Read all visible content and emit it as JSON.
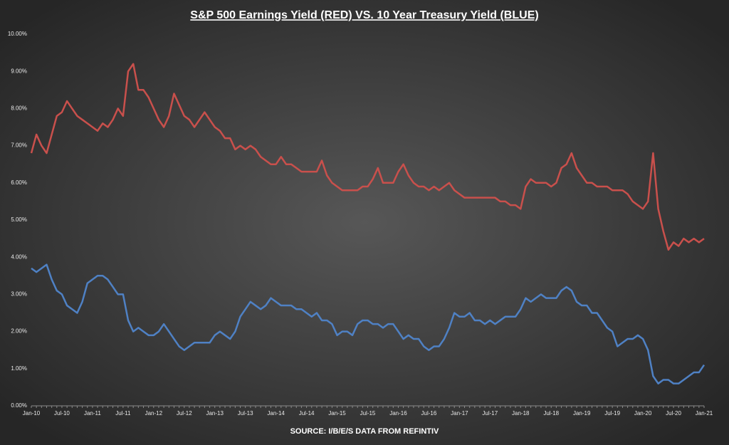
{
  "chart_data": {
    "type": "line",
    "title": "S&P 500 Earnings Yield (RED) VS. 10 Year Treasury Yield (BLUE)",
    "source": "SOURCE: I/B/E/S DATA FROM REFINTIV",
    "categories": [
      "Jan-10",
      null,
      null,
      null,
      null,
      null,
      "Jul-10",
      null,
      null,
      null,
      null,
      null,
      "Jan-11",
      null,
      null,
      null,
      null,
      null,
      "Jul-11",
      null,
      null,
      null,
      null,
      null,
      "Jan-12",
      null,
      null,
      null,
      null,
      null,
      "Jul-12",
      null,
      null,
      null,
      null,
      null,
      "Jan-13",
      null,
      null,
      null,
      null,
      null,
      "Jul-13",
      null,
      null,
      null,
      null,
      null,
      "Jan-14",
      null,
      null,
      null,
      null,
      null,
      "Jul-14",
      null,
      null,
      null,
      null,
      null,
      "Jan-15",
      null,
      null,
      null,
      null,
      null,
      "Jul-15",
      null,
      null,
      null,
      null,
      null,
      "Jan-16",
      null,
      null,
      null,
      null,
      null,
      "Jul-16",
      null,
      null,
      null,
      null,
      null,
      "Jan-17",
      null,
      null,
      null,
      null,
      null,
      "Jul-17",
      null,
      null,
      null,
      null,
      null,
      "Jan-18",
      null,
      null,
      null,
      null,
      null,
      "Jul-18",
      null,
      null,
      null,
      null,
      null,
      "Jan-19",
      null,
      null,
      null,
      null,
      null,
      "Jul-19",
      null,
      null,
      null,
      null,
      null,
      "Jan-20",
      null,
      null,
      null,
      null,
      null,
      "Jul-20",
      null,
      null,
      null,
      null,
      null,
      "Jan-21"
    ],
    "series": [
      {
        "name": "S&P 500 Earnings Yield",
        "color": "#c9504c",
        "values": [
          6.8,
          7.3,
          7.0,
          6.8,
          7.3,
          7.8,
          7.9,
          8.2,
          8.0,
          7.8,
          7.7,
          7.6,
          7.5,
          7.4,
          7.6,
          7.5,
          7.7,
          8.0,
          7.8,
          9.0,
          9.2,
          8.5,
          8.5,
          8.3,
          8.0,
          7.7,
          7.5,
          7.8,
          8.4,
          8.1,
          7.8,
          7.7,
          7.5,
          7.7,
          7.9,
          7.7,
          7.5,
          7.4,
          7.2,
          7.2,
          6.9,
          7.0,
          6.9,
          7.0,
          6.9,
          6.7,
          6.6,
          6.5,
          6.5,
          6.7,
          6.5,
          6.5,
          6.4,
          6.3,
          6.3,
          6.3,
          6.3,
          6.6,
          6.2,
          6.0,
          5.9,
          5.8,
          5.8,
          5.8,
          5.8,
          5.9,
          5.9,
          6.1,
          6.4,
          6.0,
          6.0,
          6.0,
          6.3,
          6.5,
          6.2,
          6.0,
          5.9,
          5.9,
          5.8,
          5.9,
          5.8,
          5.9,
          6.0,
          5.8,
          5.7,
          5.6,
          5.6,
          5.6,
          5.6,
          5.6,
          5.6,
          5.6,
          5.5,
          5.5,
          5.4,
          5.4,
          5.3,
          5.9,
          6.1,
          6.0,
          6.0,
          6.0,
          5.9,
          6.0,
          6.4,
          6.5,
          6.8,
          6.4,
          6.2,
          6.0,
          6.0,
          5.9,
          5.9,
          5.9,
          5.8,
          5.8,
          5.8,
          5.7,
          5.5,
          5.4,
          5.3,
          5.5,
          6.8,
          5.3,
          4.7,
          4.2,
          4.4,
          4.3,
          4.5,
          4.4,
          4.5,
          4.4,
          4.5
        ]
      },
      {
        "name": "10 Year Treasury Yield",
        "color": "#4f81c4",
        "values": [
          3.7,
          3.6,
          3.7,
          3.8,
          3.4,
          3.1,
          3.0,
          2.7,
          2.6,
          2.5,
          2.8,
          3.3,
          3.4,
          3.5,
          3.5,
          3.4,
          3.2,
          3.0,
          3.0,
          2.3,
          2.0,
          2.1,
          2.0,
          1.9,
          1.9,
          2.0,
          2.2,
          2.0,
          1.8,
          1.6,
          1.5,
          1.6,
          1.7,
          1.7,
          1.7,
          1.7,
          1.9,
          2.0,
          1.9,
          1.8,
          2.0,
          2.4,
          2.6,
          2.8,
          2.7,
          2.6,
          2.7,
          2.9,
          2.8,
          2.7,
          2.7,
          2.7,
          2.6,
          2.6,
          2.5,
          2.4,
          2.5,
          2.3,
          2.3,
          2.2,
          1.9,
          2.0,
          2.0,
          1.9,
          2.2,
          2.3,
          2.3,
          2.2,
          2.2,
          2.1,
          2.2,
          2.2,
          2.0,
          1.8,
          1.9,
          1.8,
          1.8,
          1.6,
          1.5,
          1.6,
          1.6,
          1.8,
          2.1,
          2.5,
          2.4,
          2.4,
          2.5,
          2.3,
          2.3,
          2.2,
          2.3,
          2.2,
          2.3,
          2.4,
          2.4,
          2.4,
          2.6,
          2.9,
          2.8,
          2.9,
          3.0,
          2.9,
          2.9,
          2.9,
          3.1,
          3.2,
          3.1,
          2.8,
          2.7,
          2.7,
          2.5,
          2.5,
          2.3,
          2.1,
          2.0,
          1.6,
          1.7,
          1.8,
          1.8,
          1.9,
          1.8,
          1.5,
          0.8,
          0.6,
          0.7,
          0.7,
          0.6,
          0.6,
          0.7,
          0.8,
          0.9,
          0.9,
          1.1
        ]
      }
    ],
    "ylim": [
      0,
      10
    ],
    "yticks": [
      {
        "value": 0,
        "label": "0.00%"
      },
      {
        "value": 1,
        "label": "1.00%"
      },
      {
        "value": 2,
        "label": "2.00%"
      },
      {
        "value": 3,
        "label": "3.00%"
      },
      {
        "value": 4,
        "label": "4.00%"
      },
      {
        "value": 5,
        "label": "5.00%"
      },
      {
        "value": 6,
        "label": "6.00%"
      },
      {
        "value": 7,
        "label": "7.00%"
      },
      {
        "value": 8,
        "label": "8.00%"
      },
      {
        "value": 9,
        "label": "9.00%"
      },
      {
        "value": 10,
        "label": "10.00%"
      }
    ],
    "grid": false
  }
}
